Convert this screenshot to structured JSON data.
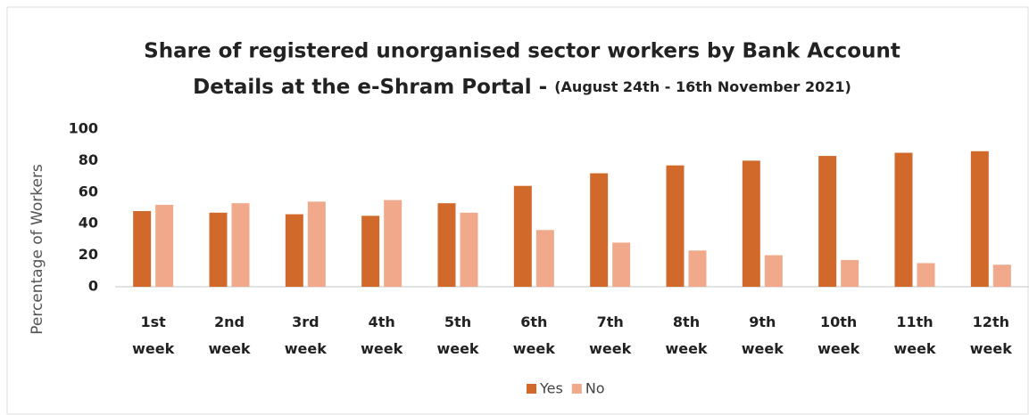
{
  "chart_data": {
    "type": "bar",
    "title": [
      "Share of registered unorganised sector workers by Bank Account",
      "Details at the e-Shram Portal -"
    ],
    "subtitle": "(August 24th - 16th November 2021)",
    "y_label": "Percentage of Workers",
    "categories": [
      "1st week",
      "2nd week",
      "3rd week",
      "4th week",
      "5th week",
      "6th week",
      "7th week",
      "8th week",
      "9th week",
      "10th week",
      "11th week",
      "12th week"
    ],
    "series": [
      {
        "name": "Yes",
        "color": "#d0692a",
        "values": [
          48,
          47,
          46,
          45,
          53,
          64,
          72,
          77,
          80,
          83,
          85,
          86
        ]
      },
      {
        "name": "No",
        "color": "#f0a98a",
        "values": [
          52,
          53,
          54,
          55,
          47,
          36,
          28,
          23,
          20,
          17,
          15,
          14
        ]
      }
    ],
    "ylim": [
      0,
      100
    ],
    "yticks": [
      0,
      20,
      40,
      60,
      80,
      100
    ],
    "grid": false,
    "legend": "bottom"
  }
}
